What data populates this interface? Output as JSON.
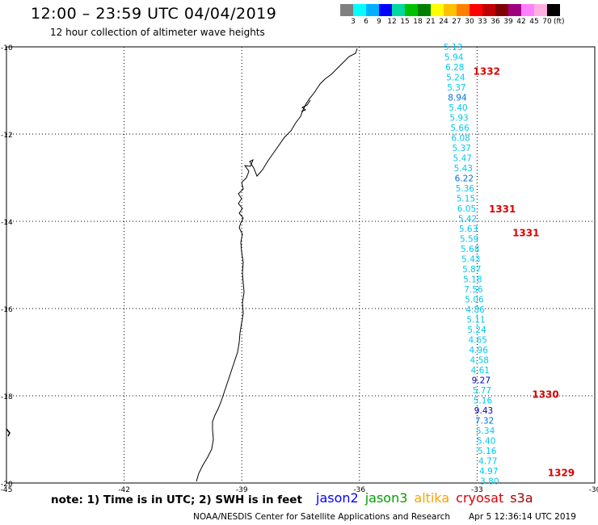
{
  "header": {
    "title": "12:00 – 23:59 UTC 04/04/2019",
    "subtitle": "12 hour collection of altimeter wave heights"
  },
  "legend": {
    "colors": [
      "#808080",
      "#00ffff",
      "#00b0ff",
      "#0000ff",
      "#00d8a0",
      "#00c000",
      "#008000",
      "#ffff00",
      "#ffc000",
      "#ff8000",
      "#ff0000",
      "#c00000",
      "#800000",
      "#a00080",
      "#ff80ff",
      "#ffb0e0",
      "#000000"
    ],
    "labels": [
      "3",
      "6",
      "9",
      "12",
      "15",
      "18",
      "21",
      "24",
      "27",
      "30",
      "33",
      "36",
      "39",
      "42",
      "45",
      "70"
    ],
    "unit": "(ft)"
  },
  "axes": {
    "x_ticks": [
      "-45",
      "-42",
      "-39",
      "-36",
      "-33",
      "-30"
    ],
    "y_ticks": [
      "-10",
      "-12",
      "-14",
      "-16",
      "-18",
      "-20"
    ]
  },
  "swh_values": [
    "5.13",
    "5.94",
    "6.28",
    "5.24",
    "5.37",
    "8.94",
    "5.40",
    "5.93",
    "5.66",
    "6.08",
    "5.37",
    "5.47",
    "5.43",
    "6.22",
    "5.36",
    "5.15",
    "6.05",
    "5.42",
    "5.63",
    "5.59",
    "5.68",
    "5.43",
    "5.87",
    "5.18",
    "7.56",
    "5.06",
    "4.86",
    "5.11",
    "5.24",
    "4.65",
    "4.96",
    "4.58",
    "4.61",
    "9.27",
    "5.77",
    "5.16",
    "9.43",
    "7.32",
    "5.34",
    "5.40",
    "5.16",
    "4.77",
    "4.97",
    "3.80"
  ],
  "swh_colors": [
    "c",
    "c",
    "c",
    "c",
    "c",
    "b",
    "c",
    "c",
    "c",
    "c",
    "c",
    "c",
    "c",
    "b",
    "c",
    "c",
    "c",
    "c",
    "c",
    "c",
    "c",
    "c",
    "c",
    "c",
    "c",
    "c",
    "c",
    "c",
    "c",
    "c",
    "c",
    "c",
    "c",
    "n",
    "c",
    "c",
    "n",
    "b",
    "c",
    "c",
    "c",
    "c",
    "c",
    "c"
  ],
  "palette": {
    "c": "#00c8f0",
    "b": "#0070e0",
    "n": "#0000c0"
  },
  "passes": [
    {
      "label": "1332",
      "lat": -10.55,
      "lon": -33.1
    },
    {
      "label": "1331",
      "lat": -13.7,
      "lon": -32.7
    },
    {
      "label": "1331",
      "lat": -14.25,
      "lon": -32.1
    },
    {
      "label": "1330",
      "lat": -17.95,
      "lon": -31.6
    },
    {
      "label": "1329",
      "lat": -19.75,
      "lon": -31.2
    }
  ],
  "footer": {
    "note": "note:  1) Time is in UTC;  2) SWH is in feet",
    "satellites": [
      {
        "name": "jason2",
        "color": "#0000ff"
      },
      {
        "name": "jason3",
        "color": "#00a000"
      },
      {
        "name": "altika",
        "color": "#ffa000"
      },
      {
        "name": "cryosat",
        "color": "#dd0000"
      },
      {
        "name": "s3a",
        "color": "#a00000"
      }
    ],
    "credit": "NOAA/NESDIS Center for Satellite Applications and Research",
    "timestamp": "Apr  5 12:36:14 UTC 2019"
  }
}
